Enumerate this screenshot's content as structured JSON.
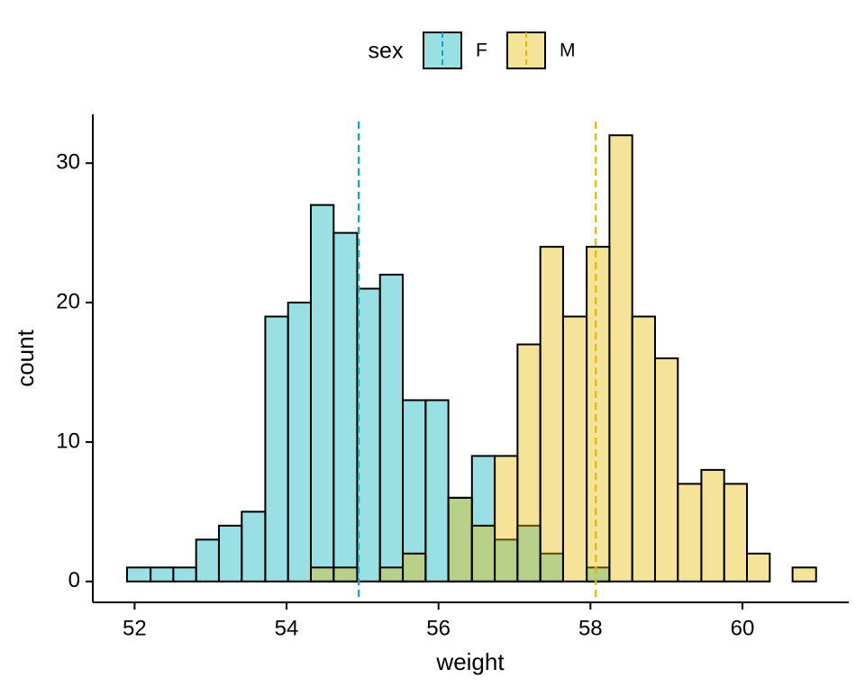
{
  "chart_data": {
    "type": "histogram",
    "x_label": "weight",
    "y_label": "count",
    "legend_title": "sex",
    "legend_position": "top",
    "bins": [
      51.9,
      52.21,
      52.51,
      52.81,
      53.11,
      53.41,
      53.72,
      54.02,
      54.32,
      54.62,
      54.93,
      55.23,
      55.53,
      55.83,
      56.13,
      56.44,
      56.74,
      57.04,
      57.34,
      57.64,
      57.95,
      58.25,
      58.55,
      58.85,
      59.15,
      59.46,
      59.76,
      60.06,
      60.36,
      60.66,
      60.97
    ],
    "series": [
      {
        "name": "F",
        "color": "#00AFBB",
        "mean": 54.95,
        "values": [
          1,
          1,
          1,
          3,
          4,
          5,
          19,
          20,
          27,
          25,
          21,
          22,
          13,
          13,
          6,
          9,
          3,
          4,
          2,
          0,
          1,
          0,
          0,
          0,
          0,
          0,
          0,
          0,
          0,
          0
        ]
      },
      {
        "name": "M",
        "color": "#E7B800",
        "mean": 58.07,
        "values": [
          0,
          0,
          0,
          0,
          0,
          0,
          0,
          0,
          1,
          1,
          0,
          1,
          2,
          0,
          6,
          4,
          9,
          17,
          24,
          19,
          24,
          32,
          19,
          16,
          7,
          8,
          7,
          2,
          0,
          1
        ]
      }
    ],
    "xlim": [
      51.45,
      61.4
    ],
    "ylim": [
      -1.5,
      33.5
    ],
    "xticks": [
      52,
      54,
      56,
      58,
      60
    ],
    "yticks": [
      0,
      10,
      20,
      30
    ]
  }
}
